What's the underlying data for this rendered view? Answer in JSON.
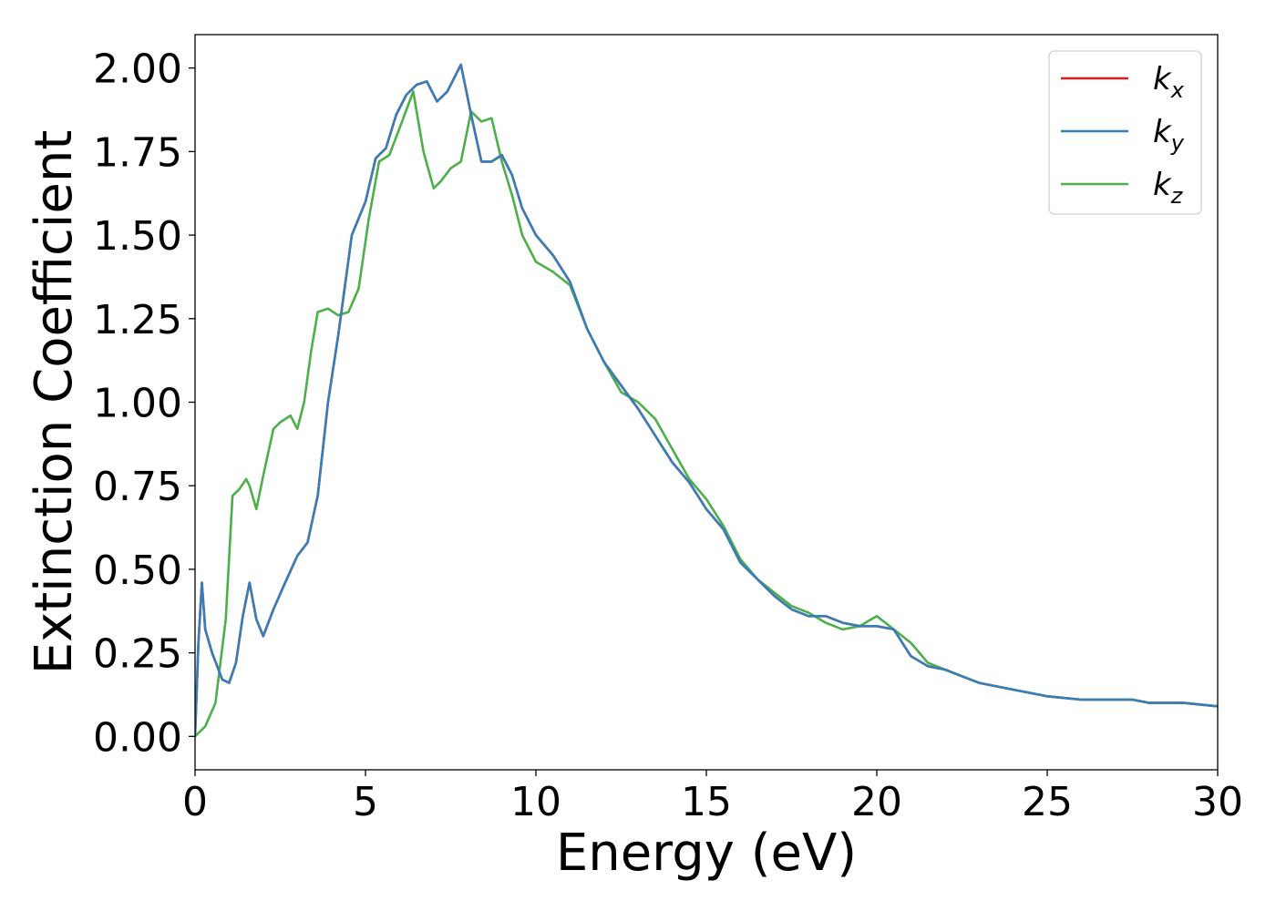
{
  "chart_data": {
    "type": "line",
    "xlabel": "Energy (eV)",
    "ylabel": "Extinction Coefficient",
    "xlim": [
      0,
      30
    ],
    "ylim": [
      -0.1,
      2.1
    ],
    "xticks": [
      0,
      5,
      10,
      15,
      20,
      25,
      30
    ],
    "xtick_labels": [
      "0",
      "5",
      "10",
      "15",
      "20",
      "25",
      "30"
    ],
    "yticks": [
      0,
      0.25,
      0.5,
      0.75,
      1.0,
      1.25,
      1.5,
      1.75,
      2.0
    ],
    "ytick_labels": [
      "0.00",
      "0.25",
      "0.50",
      "0.75",
      "1.00",
      "1.25",
      "1.50",
      "1.75",
      "2.00"
    ],
    "grid": false,
    "legend_position": "top-right",
    "series": [
      {
        "name": "k",
        "subscript": "x",
        "color": "#e41a1c",
        "x": [
          0,
          0.1,
          0.2,
          0.3,
          0.5,
          0.8,
          1.0,
          1.2,
          1.4,
          1.6,
          1.8,
          2.0,
          2.3,
          2.6,
          3.0,
          3.3,
          3.6,
          3.9,
          4.2,
          4.6,
          5.0,
          5.3,
          5.6,
          5.9,
          6.2,
          6.5,
          6.8,
          7.1,
          7.4,
          7.8,
          8.1,
          8.4,
          8.7,
          9.0,
          9.3,
          9.6,
          10.0,
          10.5,
          11.0,
          11.5,
          12.0,
          12.5,
          13.0,
          13.5,
          14.0,
          14.5,
          15.0,
          15.5,
          16.0,
          16.5,
          17.0,
          17.5,
          18.0,
          18.5,
          19.0,
          19.5,
          20.0,
          20.5,
          21.0,
          21.5,
          22.0,
          22.5,
          23.0,
          24.0,
          25.0,
          26.0,
          27.0,
          27.5,
          28.0,
          29.0,
          30.0
        ],
        "y": [
          0,
          0.28,
          0.46,
          0.32,
          0.25,
          0.17,
          0.16,
          0.22,
          0.36,
          0.46,
          0.35,
          0.3,
          0.38,
          0.45,
          0.54,
          0.58,
          0.72,
          1.0,
          1.2,
          1.5,
          1.6,
          1.73,
          1.76,
          1.86,
          1.92,
          1.95,
          1.96,
          1.9,
          1.93,
          2.01,
          1.86,
          1.72,
          1.72,
          1.74,
          1.68,
          1.58,
          1.5,
          1.44,
          1.36,
          1.22,
          1.12,
          1.05,
          0.98,
          0.9,
          0.82,
          0.76,
          0.68,
          0.62,
          0.52,
          0.47,
          0.42,
          0.38,
          0.36,
          0.36,
          0.34,
          0.33,
          0.33,
          0.32,
          0.24,
          0.21,
          0.2,
          0.18,
          0.16,
          0.14,
          0.12,
          0.11,
          0.11,
          0.11,
          0.1,
          0.1,
          0.09
        ]
      },
      {
        "name": "k",
        "subscript": "y",
        "color": "#377eb8",
        "x": [
          0,
          0.1,
          0.2,
          0.3,
          0.5,
          0.8,
          1.0,
          1.2,
          1.4,
          1.6,
          1.8,
          2.0,
          2.3,
          2.6,
          3.0,
          3.3,
          3.6,
          3.9,
          4.2,
          4.6,
          5.0,
          5.3,
          5.6,
          5.9,
          6.2,
          6.5,
          6.8,
          7.1,
          7.4,
          7.8,
          8.1,
          8.4,
          8.7,
          9.0,
          9.3,
          9.6,
          10.0,
          10.5,
          11.0,
          11.5,
          12.0,
          12.5,
          13.0,
          13.5,
          14.0,
          14.5,
          15.0,
          15.5,
          16.0,
          16.5,
          17.0,
          17.5,
          18.0,
          18.5,
          19.0,
          19.5,
          20.0,
          20.5,
          21.0,
          21.5,
          22.0,
          22.5,
          23.0,
          24.0,
          25.0,
          26.0,
          27.0,
          27.5,
          28.0,
          29.0,
          30.0
        ],
        "y": [
          0,
          0.28,
          0.46,
          0.32,
          0.25,
          0.17,
          0.16,
          0.22,
          0.36,
          0.46,
          0.35,
          0.3,
          0.38,
          0.45,
          0.54,
          0.58,
          0.72,
          1.0,
          1.2,
          1.5,
          1.6,
          1.73,
          1.76,
          1.86,
          1.92,
          1.95,
          1.96,
          1.9,
          1.93,
          2.01,
          1.86,
          1.72,
          1.72,
          1.74,
          1.68,
          1.58,
          1.5,
          1.44,
          1.36,
          1.22,
          1.12,
          1.05,
          0.98,
          0.9,
          0.82,
          0.76,
          0.68,
          0.62,
          0.52,
          0.47,
          0.42,
          0.38,
          0.36,
          0.36,
          0.34,
          0.33,
          0.33,
          0.32,
          0.24,
          0.21,
          0.2,
          0.18,
          0.16,
          0.14,
          0.12,
          0.11,
          0.11,
          0.11,
          0.1,
          0.1,
          0.09
        ]
      },
      {
        "name": "k",
        "subscript": "z",
        "color": "#4daf4a",
        "x": [
          0,
          0.3,
          0.6,
          0.9,
          1.1,
          1.3,
          1.5,
          1.6,
          1.8,
          2.0,
          2.3,
          2.5,
          2.8,
          3.0,
          3.2,
          3.4,
          3.6,
          3.9,
          4.2,
          4.5,
          4.8,
          5.1,
          5.4,
          5.7,
          6.0,
          6.4,
          6.7,
          7.0,
          7.2,
          7.5,
          7.8,
          8.1,
          8.4,
          8.7,
          9.0,
          9.3,
          9.6,
          10.0,
          10.5,
          11.0,
          11.5,
          12.0,
          12.5,
          13.0,
          13.5,
          14.0,
          14.5,
          15.0,
          15.5,
          16.0,
          16.5,
          17.0,
          17.5,
          18.0,
          18.5,
          19.0,
          19.5,
          20.0,
          20.5,
          21.0,
          21.5,
          22.0,
          22.5,
          23.0,
          24.0,
          25.0,
          26.0,
          27.0,
          27.5,
          28.0,
          29.0,
          30.0
        ],
        "y": [
          0,
          0.03,
          0.1,
          0.35,
          0.72,
          0.74,
          0.77,
          0.75,
          0.68,
          0.78,
          0.92,
          0.94,
          0.96,
          0.92,
          1.0,
          1.15,
          1.27,
          1.28,
          1.26,
          1.27,
          1.34,
          1.55,
          1.72,
          1.74,
          1.82,
          1.93,
          1.75,
          1.64,
          1.66,
          1.7,
          1.72,
          1.87,
          1.84,
          1.85,
          1.72,
          1.62,
          1.5,
          1.42,
          1.39,
          1.35,
          1.22,
          1.12,
          1.03,
          1.0,
          0.95,
          0.86,
          0.77,
          0.71,
          0.63,
          0.53,
          0.47,
          0.43,
          0.39,
          0.37,
          0.34,
          0.32,
          0.33,
          0.36,
          0.32,
          0.28,
          0.22,
          0.2,
          0.18,
          0.16,
          0.14,
          0.12,
          0.11,
          0.11,
          0.11,
          0.1,
          0.1,
          0.09
        ]
      }
    ]
  }
}
